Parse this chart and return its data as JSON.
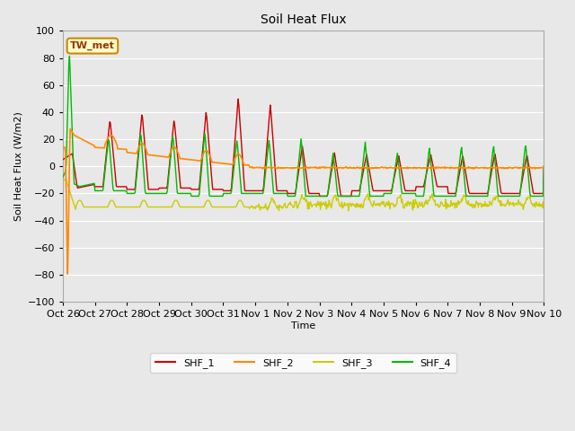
{
  "title": "Soil Heat Flux",
  "ylabel": "Soil Heat Flux (W/m2)",
  "xlabel": "Time",
  "ylim": [
    -100,
    100
  ],
  "series_colors": {
    "SHF_1": "#cc0000",
    "SHF_2": "#ff8800",
    "SHF_3": "#cccc00",
    "SHF_4": "#00bb00"
  },
  "annotation_text": "TW_met",
  "annotation_bg": "#ffffcc",
  "annotation_border": "#cc8800",
  "plot_bg": "#e8e8e8",
  "fig_bg": "#e8e8e8",
  "grid_color": "#ffffff",
  "tick_labels": [
    "Oct 26",
    "Oct 27",
    "Oct 28",
    "Oct 29",
    "Oct 30",
    "Oct 31",
    "Nov 1",
    "Nov 2",
    "Nov 3",
    "Nov 4",
    "Nov 5",
    "Nov 6",
    "Nov 7",
    "Nov 8",
    "Nov 9",
    "Nov 10"
  ],
  "yticks": [
    -100,
    -80,
    -60,
    -40,
    -20,
    0,
    20,
    40,
    60,
    80,
    100
  ]
}
